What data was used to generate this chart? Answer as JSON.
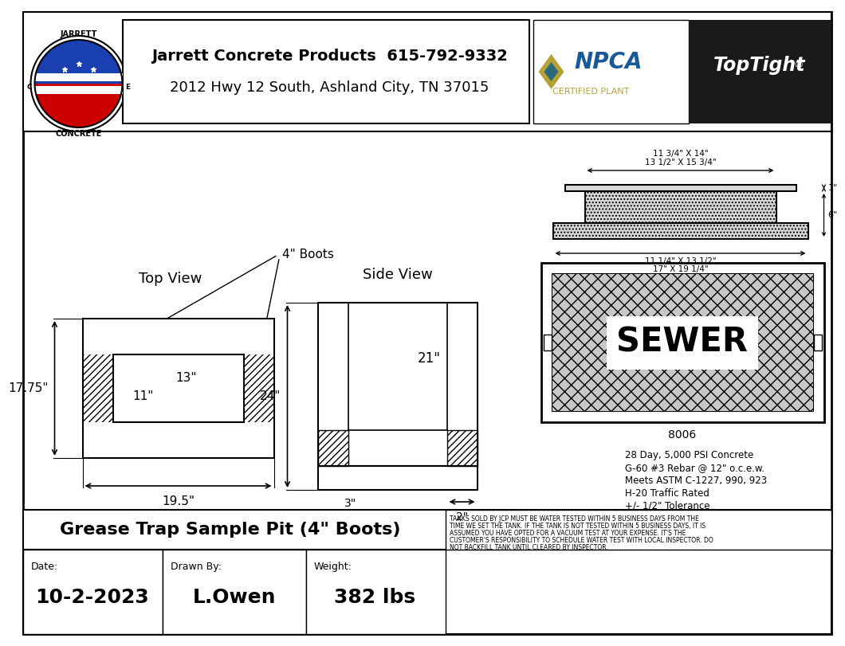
{
  "title": "Grease Trap Sample Pit (4\" Boots)",
  "date": "10-2-2023",
  "drawn_by": "L.Owen",
  "weight": "382 lbs",
  "company_name_bold": "Jarrett Concrete Products",
  "company_phone": "615-792-9332",
  "company_address": "2012 Hwy 12 South, Ashland City, TN 37015",
  "specs_line1": "28 Day, 5,000 PSI Concrete",
  "specs_line2": "G-60 #3 Rebar @ 12\" o.c.e.w.",
  "specs_line3": "Meets ASTM C-1227, 990, 923",
  "specs_line4": "H-20 Traffic Rated",
  "specs_line5": "+/- 1/2\" Tolerance",
  "top_view_label": "Top View",
  "side_view_label": "Side View",
  "boots_label": "4\" Boots",
  "dim_13": "13\"",
  "dim_11": "11\"",
  "dim_1775": "17.75\"",
  "dim_195": "19.5\"",
  "dim_24": "24\"",
  "dim_21": "21\"",
  "dim_3": "3\"",
  "dim_2": "2\"",
  "sewer_text": "SEWER",
  "sewer_model": "8006",
  "lid_dim1": "13 1/2\" X 15 3/4\"",
  "lid_dim2": "11 3/4\" X 14\"",
  "lid_dim3": "11 1/4\" X 13 1/2\"",
  "lid_dim4": "17\" X 19 1/4\"",
  "lid_dim_right1": "1\"",
  "lid_dim_right2": "6\"",
  "bg_color": "#ffffff",
  "border_color": "#000000",
  "npca_blue": "#1a5999",
  "npca_gold": "#b5a237",
  "toptight_bg": "#1a1a1a"
}
